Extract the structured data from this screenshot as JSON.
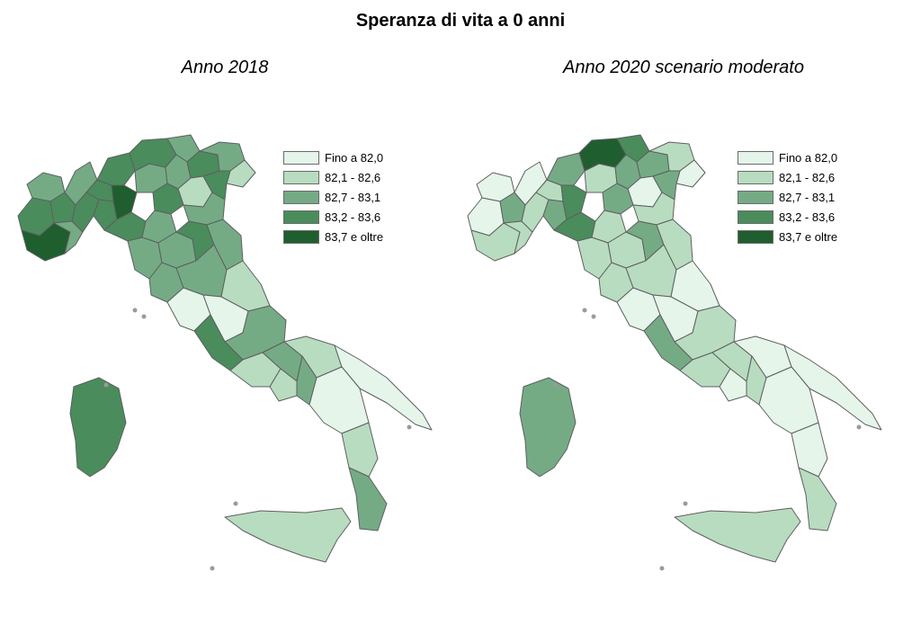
{
  "title": "Speranza di vita a 0 anni",
  "legend": {
    "items": [
      {
        "label": "Fino a 82,0",
        "color": "#e5f5ea"
      },
      {
        "label": "82,1 - 82,6",
        "color": "#b8dcc0"
      },
      {
        "label": "82,7 - 83,1",
        "color": "#74ab85"
      },
      {
        "label": "83,2 - 83,6",
        "color": "#4a8c5c"
      },
      {
        "label": "83,7 e oltre",
        "color": "#1f5e2e"
      }
    ]
  },
  "panels": [
    {
      "title": "Anno 2018",
      "region_classes": [
        3,
        4,
        5,
        4,
        3,
        3,
        4,
        4,
        4,
        4,
        5,
        4,
        3,
        4,
        3,
        3,
        4,
        3,
        2,
        2,
        4,
        3,
        4,
        3,
        3,
        3,
        4,
        3,
        3,
        1,
        3,
        2,
        1,
        4,
        3,
        2,
        3,
        2,
        3,
        2,
        1,
        1,
        2,
        3,
        4,
        2
      ]
    },
    {
      "title": "Anno 2020 scenario moderato",
      "region_classes": [
        1,
        1,
        2,
        3,
        2,
        1,
        2,
        2,
        3,
        3,
        4,
        4,
        2,
        5,
        4,
        3,
        3,
        2,
        1,
        1,
        3,
        2,
        3,
        2,
        2,
        2,
        3,
        2,
        2,
        1,
        2,
        1,
        1,
        3,
        2,
        2,
        2,
        1,
        2,
        1,
        1,
        1,
        1,
        2,
        3,
        2
      ]
    }
  ]
}
